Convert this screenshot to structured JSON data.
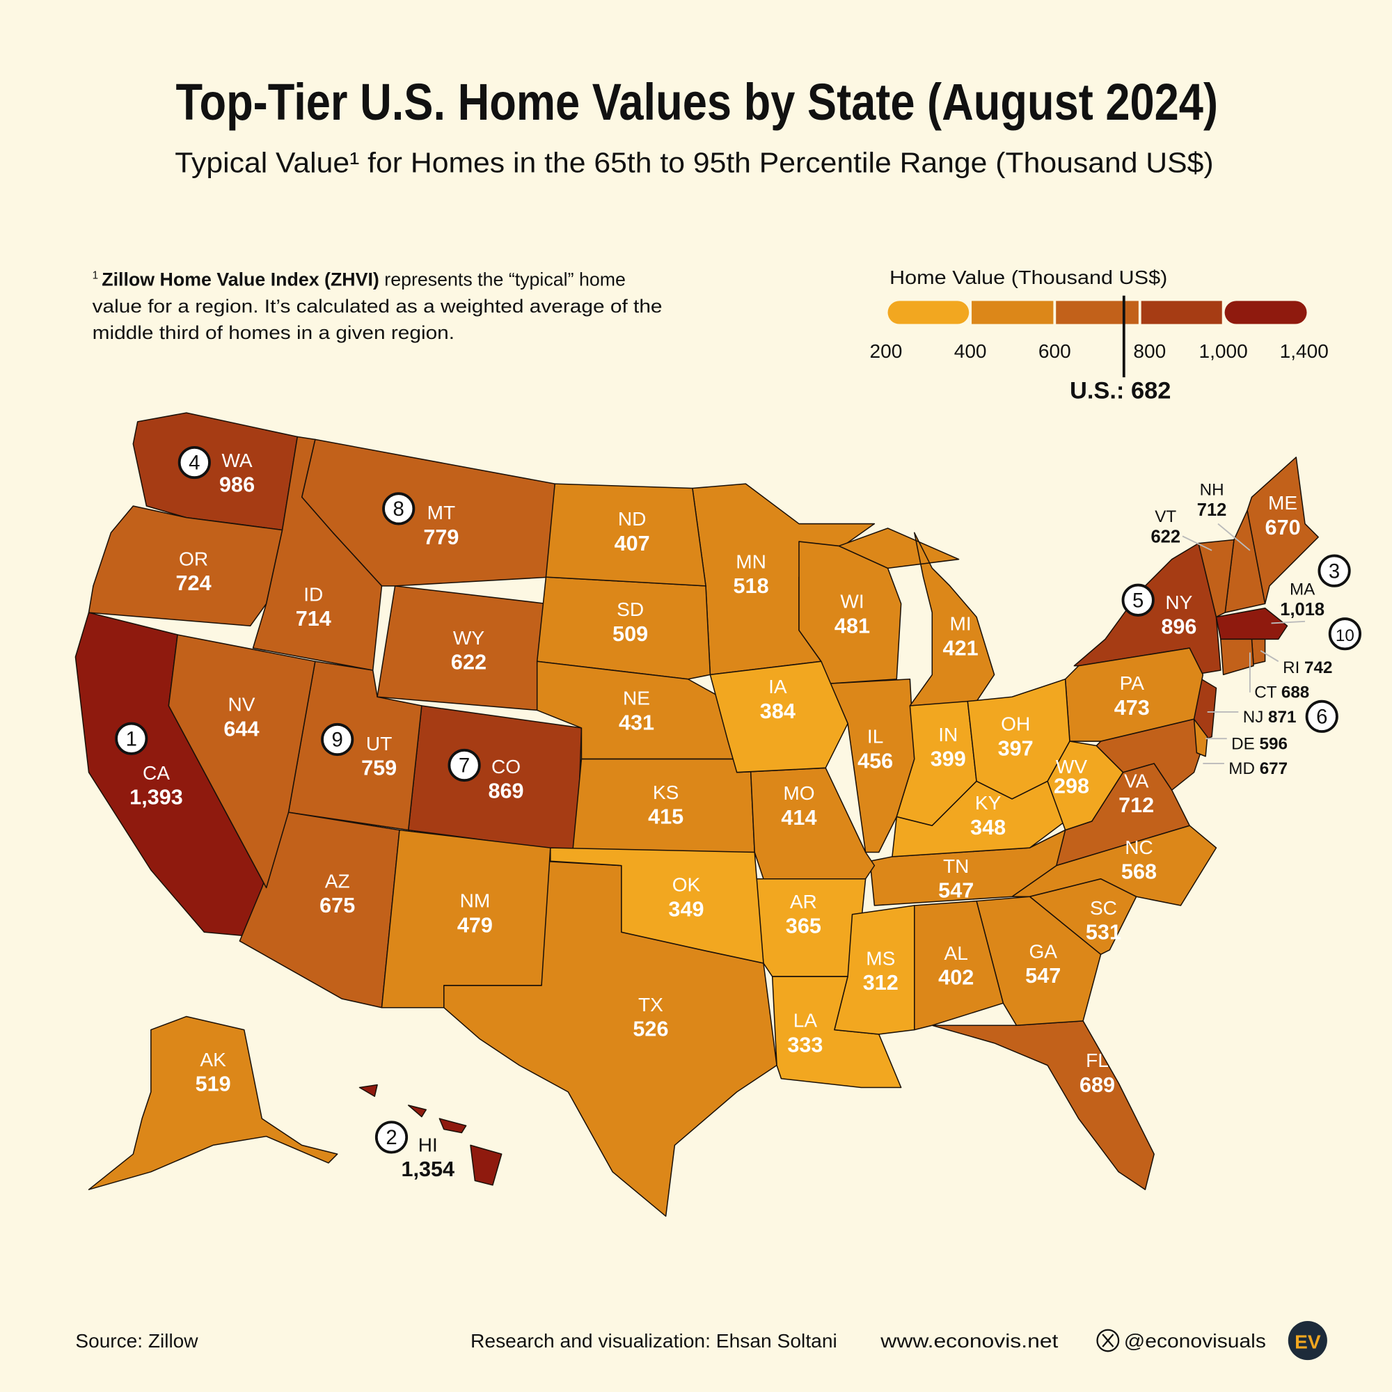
{
  "title": "Top-Tier U.S. Home Values by State (August 2024)",
  "subtitle": "Typical Value¹ for Homes in the 65th to 95th Percentile Range (Thousand US$)",
  "footnote": {
    "marker": "1",
    "bold": "Zillow Home Value Index (ZHVI)",
    "line1_rest": " represents the “typical” home",
    "line2": "value for a region. It’s calculated as a weighted average of the",
    "line3": "middle third of homes in a given region."
  },
  "legend": {
    "title": "Home Value (Thousand US$)",
    "ticks": [
      "200",
      "400",
      "600",
      "800",
      "1,000",
      "1,400"
    ],
    "bins": [
      {
        "min": 200,
        "max": 400,
        "color": "#f2a720"
      },
      {
        "min": 400,
        "max": 600,
        "color": "#dc8719"
      },
      {
        "min": 600,
        "max": 800,
        "color": "#c2611a"
      },
      {
        "min": 800,
        "max": 1000,
        "color": "#a63c14"
      },
      {
        "min": 1000,
        "max": 1400,
        "color": "#8f1a0e"
      }
    ],
    "us_label": "U.S.: 682",
    "us_value": 682
  },
  "chart_data": {
    "type": "choropleth",
    "unit": "Thousand US$",
    "states": [
      {
        "abbr": "CA",
        "value": 1393,
        "display": "1,393",
        "rank": 1
      },
      {
        "abbr": "HI",
        "value": 1354,
        "display": "1,354",
        "rank": 2
      },
      {
        "abbr": "MA",
        "value": 1018,
        "display": "1,018",
        "rank": 3
      },
      {
        "abbr": "WA",
        "value": 986,
        "display": "986",
        "rank": 4
      },
      {
        "abbr": "NY",
        "value": 896,
        "display": "896",
        "rank": 5
      },
      {
        "abbr": "NJ",
        "value": 871,
        "display": "871",
        "rank": 6
      },
      {
        "abbr": "CO",
        "value": 869,
        "display": "869",
        "rank": 7
      },
      {
        "abbr": "MT",
        "value": 779,
        "display": "779",
        "rank": 8
      },
      {
        "abbr": "UT",
        "value": 759,
        "display": "759",
        "rank": 9
      },
      {
        "abbr": "RI",
        "value": 742,
        "display": "742",
        "rank": 10
      },
      {
        "abbr": "OR",
        "value": 724,
        "display": "724"
      },
      {
        "abbr": "ID",
        "value": 714,
        "display": "714"
      },
      {
        "abbr": "NH",
        "value": 712,
        "display": "712"
      },
      {
        "abbr": "VA",
        "value": 712,
        "display": "712"
      },
      {
        "abbr": "FL",
        "value": 689,
        "display": "689"
      },
      {
        "abbr": "CT",
        "value": 688,
        "display": "688"
      },
      {
        "abbr": "MD",
        "value": 677,
        "display": "677"
      },
      {
        "abbr": "AZ",
        "value": 675,
        "display": "675"
      },
      {
        "abbr": "ME",
        "value": 670,
        "display": "670"
      },
      {
        "abbr": "NV",
        "value": 644,
        "display": "644"
      },
      {
        "abbr": "WY",
        "value": 622,
        "display": "622"
      },
      {
        "abbr": "VT",
        "value": 622,
        "display": "622"
      },
      {
        "abbr": "DE",
        "value": 596,
        "display": "596"
      },
      {
        "abbr": "NC",
        "value": 568,
        "display": "568"
      },
      {
        "abbr": "TN",
        "value": 547,
        "display": "547"
      },
      {
        "abbr": "GA",
        "value": 547,
        "display": "547"
      },
      {
        "abbr": "SC",
        "value": 531,
        "display": "531"
      },
      {
        "abbr": "TX",
        "value": 526,
        "display": "526"
      },
      {
        "abbr": "AK",
        "value": 519,
        "display": "519"
      },
      {
        "abbr": "MN",
        "value": 518,
        "display": "518"
      },
      {
        "abbr": "SD",
        "value": 509,
        "display": "509"
      },
      {
        "abbr": "WI",
        "value": 481,
        "display": "481"
      },
      {
        "abbr": "NM",
        "value": 479,
        "display": "479"
      },
      {
        "abbr": "PA",
        "value": 473,
        "display": "473"
      },
      {
        "abbr": "IL",
        "value": 456,
        "display": "456"
      },
      {
        "abbr": "NE",
        "value": 431,
        "display": "431"
      },
      {
        "abbr": "MI",
        "value": 421,
        "display": "421"
      },
      {
        "abbr": "KS",
        "value": 415,
        "display": "415"
      },
      {
        "abbr": "MO",
        "value": 414,
        "display": "414"
      },
      {
        "abbr": "ND",
        "value": 407,
        "display": "407"
      },
      {
        "abbr": "AL",
        "value": 402,
        "display": "402"
      },
      {
        "abbr": "IN",
        "value": 399,
        "display": "399"
      },
      {
        "abbr": "OH",
        "value": 397,
        "display": "397"
      },
      {
        "abbr": "IA",
        "value": 384,
        "display": "384"
      },
      {
        "abbr": "AR",
        "value": 365,
        "display": "365"
      },
      {
        "abbr": "OK",
        "value": 349,
        "display": "349"
      },
      {
        "abbr": "KY",
        "value": 348,
        "display": "348"
      },
      {
        "abbr": "LA",
        "value": 333,
        "display": "333"
      },
      {
        "abbr": "MS",
        "value": 312,
        "display": "312"
      },
      {
        "abbr": "WV",
        "value": 298,
        "display": "298"
      }
    ]
  },
  "footer": {
    "source": "Source: Zillow",
    "credit": "Research and visualization: Ehsan Soltani",
    "website": "www.econovis.net",
    "handle": "@econovisuals",
    "logo": "EV",
    "x_icon": "x-logo-icon"
  },
  "colors": {
    "background": "#fdf8e3",
    "text": "#111111"
  }
}
